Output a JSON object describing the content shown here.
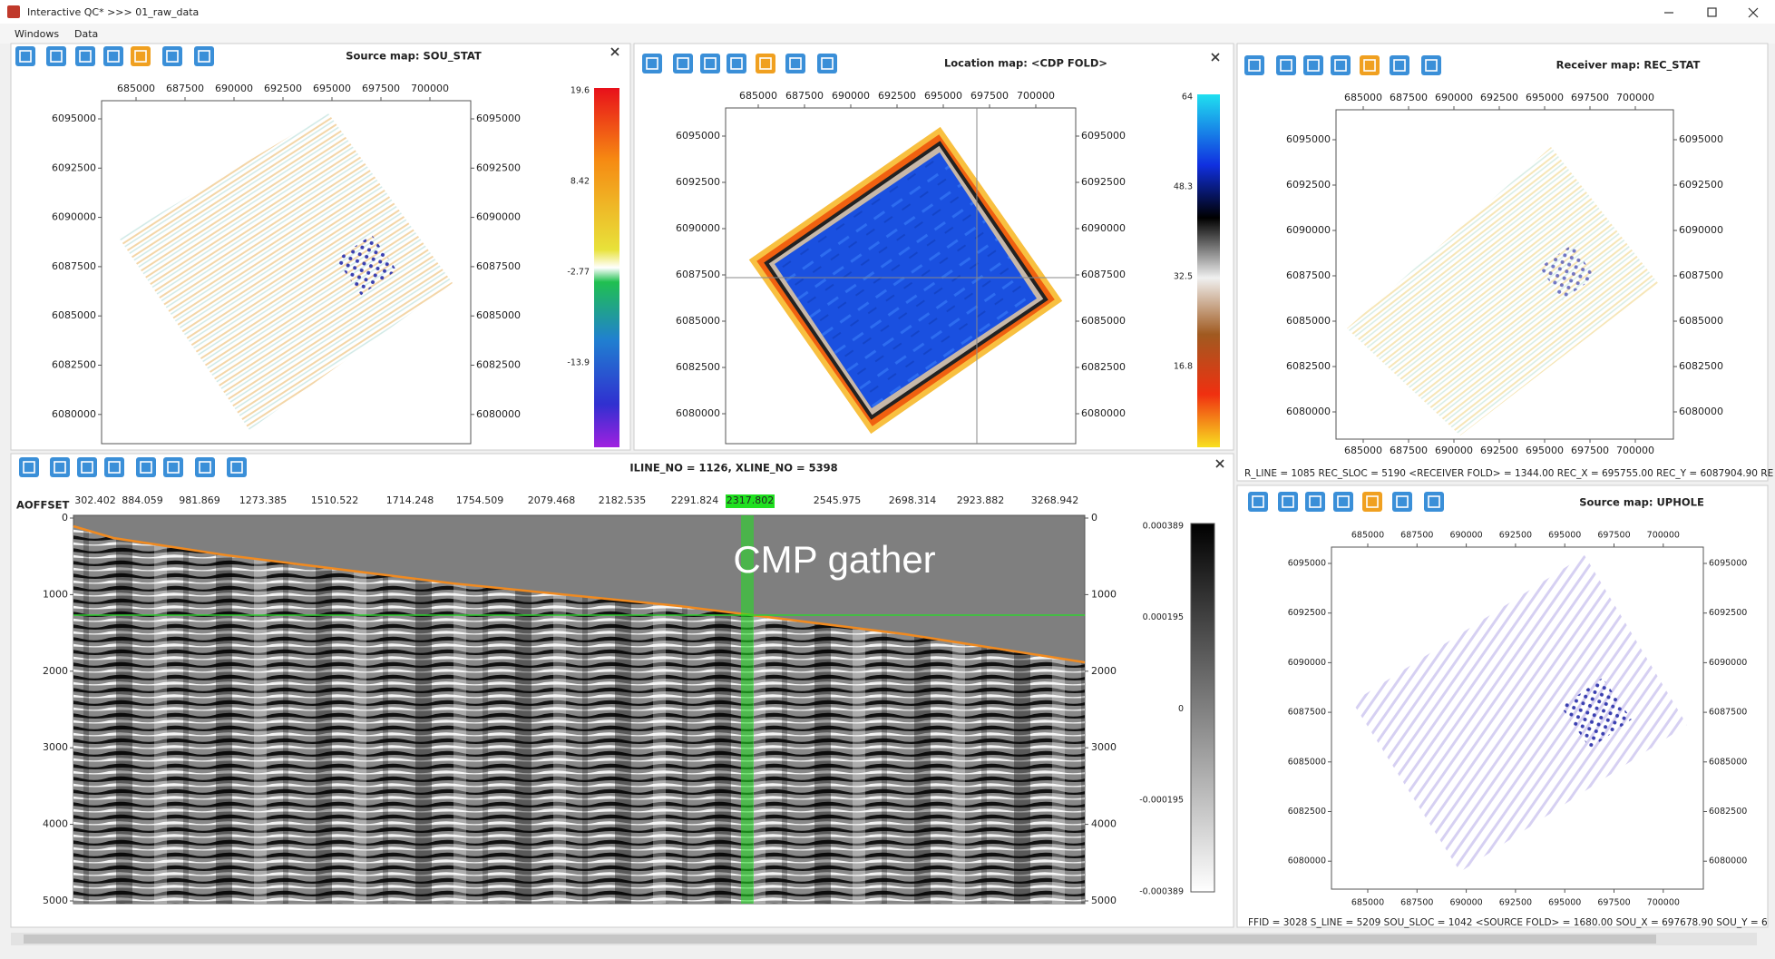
{
  "window": {
    "title": "Interactive QC* >>> 01_raw_data",
    "menu": [
      "Windows",
      "Data"
    ]
  },
  "panels": {
    "source_map": {
      "title": "Source map: SOU_STAT",
      "xticks": [
        685000,
        687500,
        690000,
        692500,
        695000,
        697500,
        700000
      ],
      "yticks": [
        6095000,
        6092500,
        6090000,
        6087500,
        6085000,
        6082500,
        6080000
      ],
      "colorbar": [
        19.6,
        8.42,
        -2.77,
        -13.9
      ]
    },
    "location_map": {
      "title": "Location map: <CDP FOLD>",
      "xticks": [
        685000,
        687500,
        690000,
        692500,
        695000,
        697500,
        700000
      ],
      "yticks": [
        6095000,
        6092500,
        6090000,
        6087500,
        6085000,
        6082500,
        6080000
      ],
      "colorbar": [
        64,
        48.3,
        32.5,
        16.8
      ]
    },
    "receiver_map": {
      "title": "Receiver map: REC_STAT",
      "xticks": [
        685000,
        687500,
        690000,
        692500,
        695000,
        697500,
        700000
      ],
      "yticks": [
        6095000,
        6092500,
        6090000,
        6087500,
        6085000,
        6082500,
        6080000
      ],
      "status": "R_LINE = 1085  REC_SLOC = 5190  <RECEIVER FOLD> = 1344.00  REC_X = 695755.00  REC_Y = 6087904.90  RE"
    },
    "gather": {
      "header": "ILINE_NO = 1126, XLINE_NO = 5398",
      "offset_label": "AOFFSET",
      "offsets": [
        302.402,
        884.059,
        981.869,
        1273.385,
        1510.522,
        1714.248,
        1754.509,
        2079.468,
        2182.535,
        2291.824,
        2317.802,
        2545.975,
        2698.314,
        2923.882,
        3268.942
      ],
      "time_ticks": [
        0,
        1000,
        2000,
        3000,
        4000,
        5000
      ],
      "colorbar": [
        0.000389,
        0.000195,
        0,
        -0.000195,
        -0.000389
      ],
      "annotation": "CMP gather"
    },
    "uphole_map": {
      "title": "Source map: UPHOLE",
      "xticks": [
        685000,
        687500,
        690000,
        692500,
        695000,
        697500,
        700000
      ],
      "yticks": [
        6095000,
        6092500,
        6090000,
        6087500,
        6085000,
        6082500,
        6080000
      ],
      "status": "FFID = 3028  S_LINE = 5209  SOU_SLOC = 1042  <SOURCE FOLD> = 1680.00  SOU_X = 697678.90  SOU_Y = 6"
    }
  }
}
